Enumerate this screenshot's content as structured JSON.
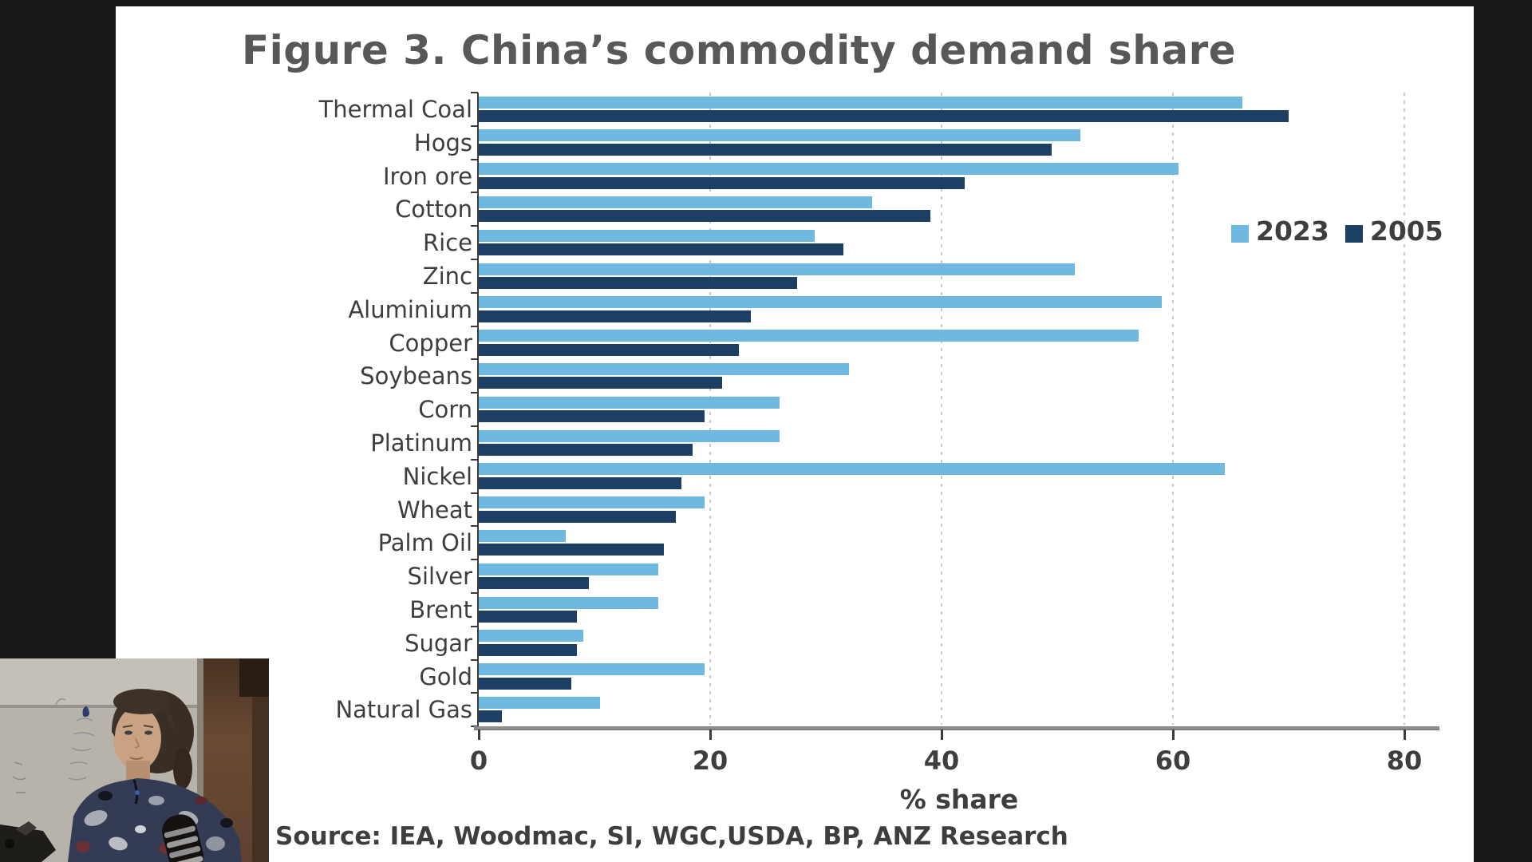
{
  "figure": {
    "title": "Figure 3. China’s commodity demand share",
    "x_axis_title": "% share",
    "source": "Source: IEA, Woodmac, SI, WGC,USDA, BP, ANZ Research"
  },
  "chart_data": {
    "type": "bar",
    "orientation": "horizontal",
    "title": "Figure 3. China’s commodity demand share",
    "xlabel": "% share",
    "xlim": [
      0,
      80
    ],
    "x_ticks": [
      0,
      20,
      40,
      60,
      80
    ],
    "grid": "vertical-dotted",
    "legend_position": "right",
    "categories": [
      "Thermal Coal",
      "Hogs",
      "Iron ore",
      "Cotton",
      "Rice",
      "Zinc",
      "Aluminium",
      "Copper",
      "Soybeans",
      "Corn",
      "Platinum",
      "Nickel",
      "Wheat",
      "Palm Oil",
      "Silver",
      "Brent",
      "Sugar",
      "Gold",
      "Natural Gas"
    ],
    "series": [
      {
        "name": "2023",
        "color": "#6FB9E0",
        "values": [
          66,
          52,
          60.5,
          34,
          29,
          51.5,
          59,
          57,
          32,
          26,
          26,
          64.5,
          19.5,
          7.5,
          15.5,
          15.5,
          9,
          19.5,
          10.5
        ]
      },
      {
        "name": "2005",
        "color": "#1D3F63",
        "values": [
          70,
          49.5,
          42,
          39,
          31.5,
          27.5,
          23.5,
          22.5,
          21,
          19.5,
          18.5,
          17.5,
          17,
          16,
          9.5,
          8.5,
          8.5,
          8,
          2
        ]
      }
    ]
  },
  "webcam": {
    "present": true,
    "position": "bottom-left"
  }
}
